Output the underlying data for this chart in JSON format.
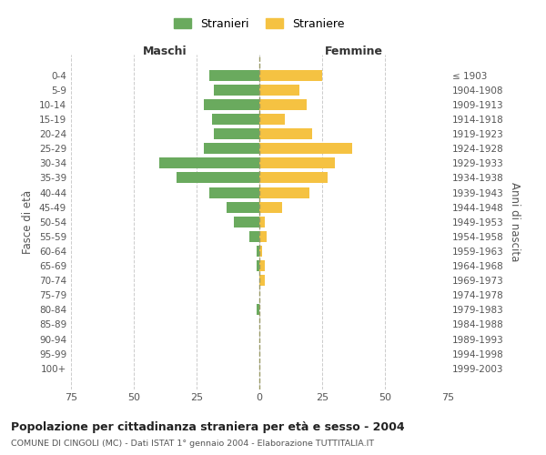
{
  "age_groups": [
    "0-4",
    "5-9",
    "10-14",
    "15-19",
    "20-24",
    "25-29",
    "30-34",
    "35-39",
    "40-44",
    "45-49",
    "50-54",
    "55-59",
    "60-64",
    "65-69",
    "70-74",
    "75-79",
    "80-84",
    "85-89",
    "90-94",
    "95-99",
    "100+"
  ],
  "birth_years": [
    "1999-2003",
    "1994-1998",
    "1989-1993",
    "1984-1988",
    "1979-1983",
    "1974-1978",
    "1969-1973",
    "1964-1968",
    "1959-1963",
    "1954-1958",
    "1949-1953",
    "1944-1948",
    "1939-1943",
    "1934-1938",
    "1929-1933",
    "1924-1928",
    "1919-1923",
    "1914-1918",
    "1909-1913",
    "1904-1908",
    "≤ 1903"
  ],
  "males": [
    20,
    18,
    22,
    19,
    18,
    22,
    40,
    33,
    20,
    13,
    10,
    4,
    1,
    1,
    0,
    0,
    1,
    0,
    0,
    0,
    0
  ],
  "females": [
    25,
    16,
    19,
    10,
    21,
    37,
    30,
    27,
    20,
    9,
    2,
    3,
    1,
    2,
    2,
    0,
    0,
    0,
    0,
    0,
    0
  ],
  "male_color": "#6aaa5e",
  "female_color": "#f5c242",
  "background_color": "#ffffff",
  "grid_color": "#cccccc",
  "title": "Popolazione per cittadinanza straniera per età e sesso - 2004",
  "subtitle": "COMUNE DI CINGOLI (MC) - Dati ISTAT 1° gennaio 2004 - Elaborazione TUTTITALIA.IT",
  "xlabel_left": "Maschi",
  "xlabel_right": "Femmine",
  "ylabel_left": "Fasce di età",
  "ylabel_right": "Anni di nascita",
  "legend_male": "Stranieri",
  "legend_female": "Straniere",
  "xlim": 75
}
